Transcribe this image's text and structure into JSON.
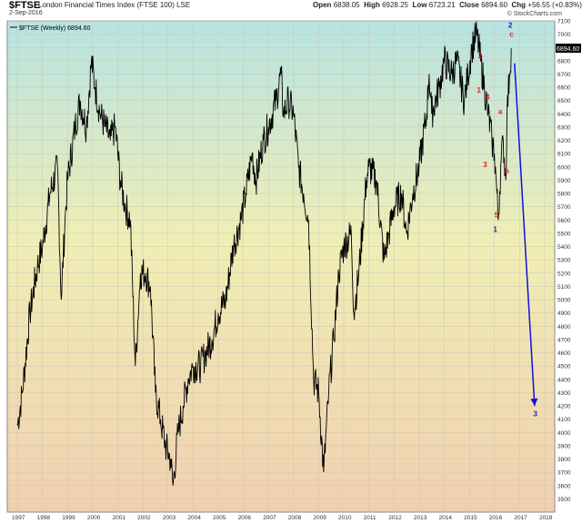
{
  "header": {
    "symbol": "$FTSE",
    "name": "London Financial Times Index (FTSE 100) LSE",
    "date": "2-Sep-2016",
    "open_label": "Open",
    "open": "6838.05",
    "high_label": "High",
    "high": "6928.25",
    "low_label": "Low",
    "low": "6723.21",
    "close_label": "Close",
    "close": "6894.60",
    "chg_label": "Chg",
    "chg": "+56.55 (+0.83%)",
    "brand": "© StockCharts.com"
  },
  "colors": {
    "gradient_top": "#b7e3e3",
    "gradient_mid": "#f0eeb4",
    "gradient_bottom": "#f1cfb0",
    "price_line": "#000000",
    "wave_red": "#e02020",
    "wave_blue": "#1a22cc",
    "arrow_blue": "#1010dd"
  },
  "chart_data": {
    "type": "line",
    "series": [
      {
        "name": "$FTSE (Weekly) 6894.60",
        "x": [
          1997.0,
          1997.2,
          1997.5,
          1997.8,
          1998.0,
          1998.3,
          1998.6,
          1998.75,
          1998.9,
          1999.0,
          1999.3,
          1999.5,
          1999.75,
          1999.95,
          2000.1,
          2000.3,
          2000.5,
          2000.7,
          2000.9,
          2001.1,
          2001.3,
          2001.5,
          2001.7,
          2001.9,
          2002.1,
          2002.3,
          2002.5,
          2002.7,
          2002.9,
          2003.1,
          2003.2,
          2003.4,
          2003.6,
          2003.8,
          2004.0,
          2004.3,
          2004.5,
          2004.75,
          2005.0,
          2005.3,
          2005.6,
          2005.9,
          2006.1,
          2006.35,
          2006.5,
          2006.8,
          2007.0,
          2007.3,
          2007.5,
          2007.6,
          2007.8,
          2008.0,
          2008.2,
          2008.4,
          2008.6,
          2008.8,
          2009.0,
          2009.2,
          2009.4,
          2009.6,
          2009.8,
          2010.0,
          2010.3,
          2010.4,
          2010.6,
          2010.9,
          2011.0,
          2011.3,
          2011.6,
          2011.8,
          2012.0,
          2012.3,
          2012.5,
          2012.75,
          2013.0,
          2013.3,
          2013.4,
          2013.5,
          2013.8,
          2014.0,
          2014.3,
          2014.5,
          2014.8,
          2014.95,
          2015.1,
          2015.3,
          2015.45,
          2015.6,
          2015.75,
          2015.9,
          2016.0,
          2016.1,
          2016.15,
          2016.25,
          2016.35,
          2016.45,
          2016.5,
          2016.6,
          2016.67
        ],
        "y": [
          4050,
          4300,
          4900,
          5250,
          5400,
          5800,
          6000,
          5000,
          5600,
          5900,
          6300,
          6500,
          6300,
          6800,
          6600,
          6400,
          6300,
          6200,
          6300,
          5900,
          5700,
          5600,
          4500,
          5200,
          5200,
          5100,
          4300,
          4100,
          3900,
          3800,
          3600,
          4000,
          4200,
          4400,
          4500,
          4500,
          4600,
          4700,
          4900,
          5000,
          5400,
          5600,
          5800,
          6100,
          5900,
          6200,
          6300,
          6500,
          6700,
          6400,
          6500,
          6400,
          6000,
          5800,
          5600,
          4400,
          4300,
          3700,
          4300,
          4700,
          5200,
          5400,
          5500,
          4900,
          5200,
          5900,
          6000,
          5900,
          5300,
          5500,
          5700,
          5800,
          5500,
          5800,
          6000,
          6400,
          6700,
          6400,
          6600,
          6800,
          6700,
          6800,
          6500,
          6700,
          6900,
          7000,
          6800,
          6600,
          6400,
          6200,
          6100,
          5800,
          5600,
          6000,
          6200,
          5900,
          6400,
          6700,
          6894
        ]
      }
    ],
    "xticks": [
      "1997",
      "1998",
      "1999",
      "2000",
      "2001",
      "2002",
      "2003",
      "2004",
      "2005",
      "2006",
      "2007",
      "2008",
      "2009",
      "2010",
      "2011",
      "2012",
      "2013",
      "2014",
      "2015",
      "2016",
      "2017",
      "2018"
    ],
    "xlim": [
      1996.6,
      2018.4
    ],
    "ylim": [
      3400,
      7100
    ],
    "yticks": [
      3500,
      3600,
      3700,
      3800,
      3900,
      4000,
      4100,
      4200,
      4300,
      4400,
      4500,
      4600,
      4700,
      4800,
      4900,
      5000,
      5100,
      5200,
      5300,
      5400,
      5500,
      5600,
      5700,
      5800,
      5900,
      6000,
      6100,
      6200,
      6300,
      6400,
      6500,
      6600,
      6700,
      6800,
      6900,
      7000,
      7100
    ],
    "last_value_label": "6894.60",
    "annotations": [
      {
        "text": "2",
        "color": "red",
        "x": 2015.35,
        "y": 6815
      },
      {
        "text": "1",
        "color": "red",
        "x": 2015.3,
        "y": 6560
      },
      {
        "text": "4",
        "color": "red",
        "x": 2015.65,
        "y": 6510
      },
      {
        "text": "3",
        "color": "red",
        "x": 2015.55,
        "y": 6000
      },
      {
        "text": "5",
        "color": "red",
        "x": 2016.0,
        "y": 5620
      },
      {
        "text": "a",
        "color": "red",
        "x": 2016.15,
        "y": 6400
      },
      {
        "text": "b",
        "color": "red",
        "x": 2016.4,
        "y": 5950
      },
      {
        "text": "c",
        "color": "red",
        "x": 2016.6,
        "y": 6980
      },
      {
        "text": "2",
        "color": "blue",
        "x": 2016.55,
        "y": 7050
      },
      {
        "text": "1",
        "color": "blue",
        "x": 2015.95,
        "y": 5510
      },
      {
        "text": "3",
        "color": "blue",
        "x": 2017.55,
        "y": 4120
      }
    ],
    "arrow": {
      "from": {
        "x": 2016.8,
        "y": 6780
      },
      "to": {
        "x": 2017.6,
        "y": 4200
      }
    },
    "grid": true
  }
}
